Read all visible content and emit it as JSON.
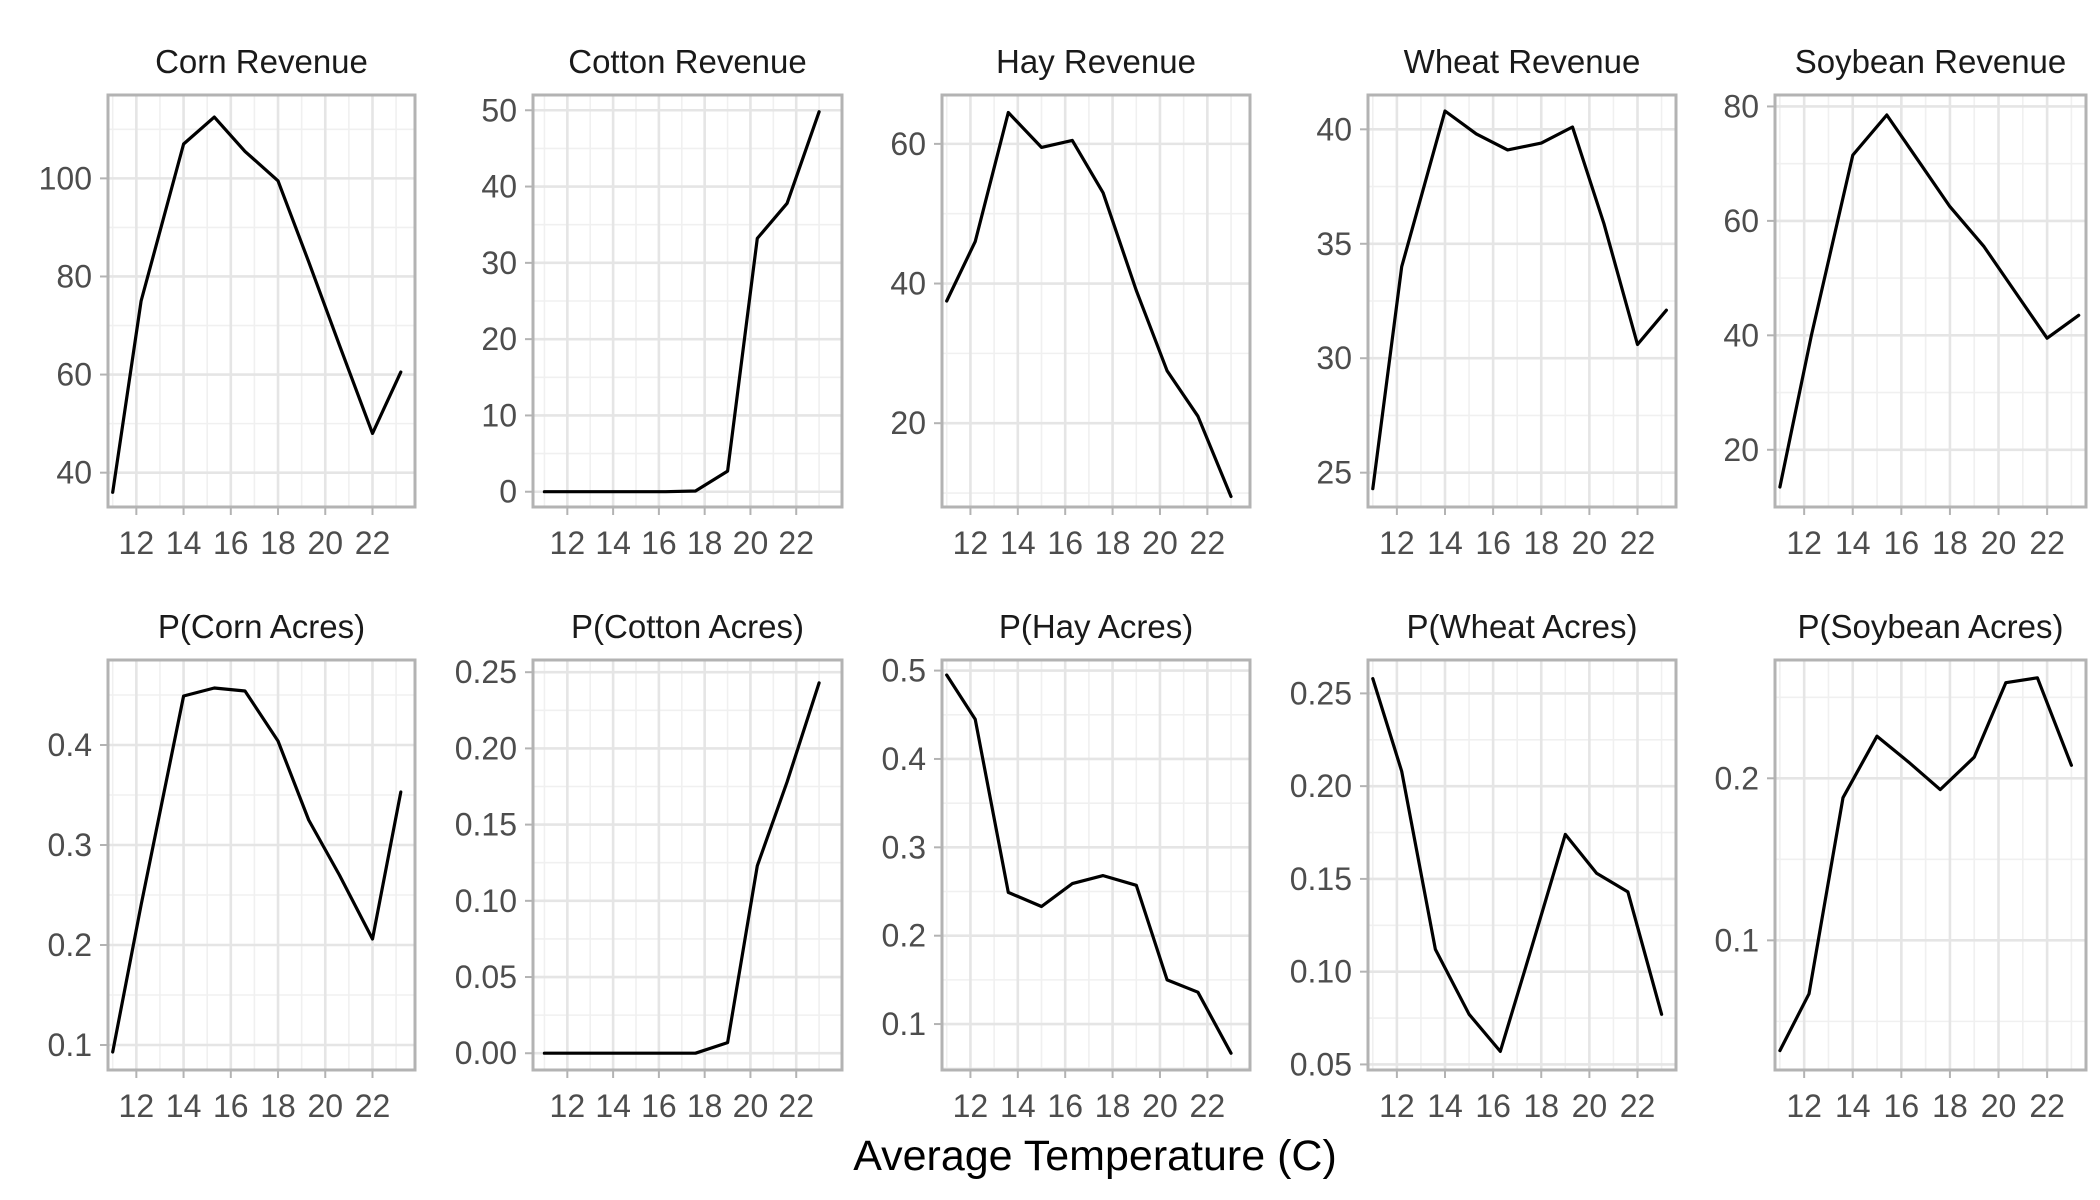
{
  "xlabel": "Average Temperature (C)",
  "chart_data": [
    {
      "type": "line",
      "title": "Corn Revenue",
      "xlim": [
        10.8,
        23.8
      ],
      "ylim": [
        33,
        117
      ],
      "xticks": [
        12,
        14,
        16,
        18,
        20,
        22
      ],
      "yticks": [
        40,
        60,
        80,
        100
      ],
      "x": [
        11,
        12.2,
        14,
        15.3,
        16.6,
        18,
        19.3,
        20.6,
        22,
        23.2
      ],
      "y": [
        36,
        75,
        107,
        112.5,
        105.5,
        99.5,
        83,
        66,
        48,
        60.5
      ]
    },
    {
      "type": "line",
      "title": "Cotton Revenue",
      "xlim": [
        10.5,
        24
      ],
      "ylim": [
        -2,
        52
      ],
      "xticks": [
        12,
        14,
        16,
        18,
        20,
        22
      ],
      "yticks": [
        0,
        10,
        20,
        30,
        40,
        50
      ],
      "x": [
        11,
        12.3,
        13.6,
        15,
        16.3,
        17.6,
        19,
        20.3,
        21.6,
        23
      ],
      "y": [
        0,
        0,
        0,
        0,
        0,
        0.1,
        2.7,
        33.2,
        37.8,
        49.8
      ]
    },
    {
      "type": "line",
      "title": "Hay Revenue",
      "xlim": [
        10.8,
        23.8
      ],
      "ylim": [
        8,
        67
      ],
      "xticks": [
        12,
        14,
        16,
        18,
        20,
        22
      ],
      "yticks": [
        20,
        40,
        60
      ],
      "x": [
        11,
        12.2,
        13.6,
        15,
        16.3,
        17.6,
        19,
        20.3,
        21.6,
        23
      ],
      "y": [
        37.5,
        46,
        64.5,
        59.5,
        60.5,
        53,
        39,
        27.5,
        21,
        9.5
      ]
    },
    {
      "type": "line",
      "title": "Wheat Revenue",
      "xlim": [
        10.8,
        23.6
      ],
      "ylim": [
        23.5,
        41.5
      ],
      "xticks": [
        12,
        14,
        16,
        18,
        20,
        22
      ],
      "yticks": [
        25,
        30,
        35,
        40
      ],
      "x": [
        11,
        12.2,
        14,
        15.3,
        16.6,
        18,
        19.3,
        20.6,
        22,
        23.2
      ],
      "y": [
        24.3,
        34,
        40.8,
        39.8,
        39.1,
        39.4,
        40.1,
        35.9,
        30.6,
        32.1
      ]
    },
    {
      "type": "line",
      "title": "Soybean Revenue",
      "xlim": [
        10.8,
        23.6
      ],
      "ylim": [
        10,
        82
      ],
      "xticks": [
        12,
        14,
        16,
        18,
        20,
        22
      ],
      "yticks": [
        20,
        40,
        60,
        80
      ],
      "x": [
        11,
        12.3,
        14,
        15.4,
        16.7,
        18,
        19.4,
        20.7,
        22,
        23.3
      ],
      "y": [
        13.5,
        40,
        71.5,
        78.5,
        70.5,
        62.5,
        55.5,
        47.5,
        39.5,
        43.5
      ]
    },
    {
      "type": "line",
      "title": "P(Corn Acres)",
      "xlim": [
        10.8,
        23.8
      ],
      "ylim": [
        0.075,
        0.485
      ],
      "xticks": [
        12,
        14,
        16,
        18,
        20,
        22
      ],
      "yticks": [
        0.1,
        0.2,
        0.3,
        0.4
      ],
      "x": [
        11,
        12.2,
        14,
        15.3,
        16.6,
        18,
        19.3,
        20.6,
        22,
        23.2
      ],
      "y": [
        0.093,
        0.24,
        0.449,
        0.457,
        0.454,
        0.404,
        0.325,
        0.27,
        0.206,
        0.353
      ]
    },
    {
      "type": "line",
      "title": "P(Cotton Acres)",
      "xlim": [
        10.5,
        24
      ],
      "ylim": [
        -0.011,
        0.258
      ],
      "xticks": [
        12,
        14,
        16,
        18,
        20,
        22
      ],
      "yticks": [
        0.0,
        0.05,
        0.1,
        0.15,
        0.2,
        0.25
      ],
      "ytick_labels": [
        "0.00",
        "0.05",
        "0.10",
        "0.15",
        "0.20",
        "0.25"
      ],
      "x": [
        11,
        12.3,
        13.6,
        15,
        16.3,
        17.6,
        19,
        20.3,
        21.6,
        23
      ],
      "y": [
        0,
        0,
        0,
        0,
        0,
        0,
        0.007,
        0.123,
        0.178,
        0.243
      ]
    },
    {
      "type": "line",
      "title": "P(Hay Acres)",
      "xlim": [
        10.8,
        23.8
      ],
      "ylim": [
        0.048,
        0.512
      ],
      "xticks": [
        12,
        14,
        16,
        18,
        20,
        22
      ],
      "yticks": [
        0.1,
        0.2,
        0.3,
        0.4,
        0.5
      ],
      "x": [
        11,
        12.2,
        13.6,
        15,
        16.3,
        17.6,
        19,
        20.3,
        21.6,
        23
      ],
      "y": [
        0.495,
        0.445,
        0.249,
        0.233,
        0.259,
        0.268,
        0.257,
        0.15,
        0.136,
        0.067
      ]
    },
    {
      "type": "line",
      "title": "P(Wheat Acres)",
      "xlim": [
        10.8,
        23.6
      ],
      "ylim": [
        0.047,
        0.268
      ],
      "xticks": [
        12,
        14,
        16,
        18,
        20,
        22
      ],
      "yticks": [
        0.05,
        0.1,
        0.15,
        0.2,
        0.25
      ],
      "ytick_labels": [
        "0.05",
        "0.10",
        "0.15",
        "0.20",
        "0.25"
      ],
      "x": [
        11,
        12.2,
        13.6,
        15,
        16.3,
        17.6,
        19,
        20.3,
        21.6,
        23
      ],
      "y": [
        0.258,
        0.208,
        0.112,
        0.077,
        0.057,
        0.113,
        0.174,
        0.153,
        0.143,
        0.077
      ]
    },
    {
      "type": "line",
      "title": "P(Soybean Acres)",
      "xlim": [
        10.8,
        23.6
      ],
      "ylim": [
        0.02,
        0.273
      ],
      "xticks": [
        12,
        14,
        16,
        18,
        20,
        22
      ],
      "yticks": [
        0.1,
        0.2
      ],
      "x": [
        11,
        12.2,
        13.6,
        15,
        16.3,
        17.6,
        19,
        20.3,
        21.6,
        23
      ],
      "y": [
        0.032,
        0.067,
        0.188,
        0.226,
        0.21,
        0.193,
        0.213,
        0.259,
        0.262,
        0.208
      ]
    }
  ]
}
